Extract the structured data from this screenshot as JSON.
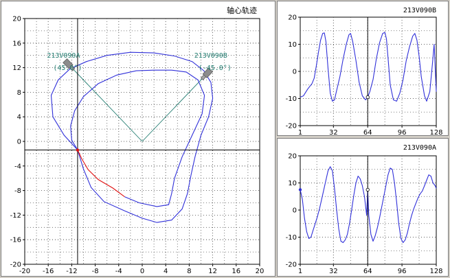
{
  "chart_data": [
    {
      "type": "line",
      "title": "轴心轨迹",
      "xlim": [
        -20,
        20
      ],
      "ylim": [
        -20,
        20
      ],
      "xticks": [
        -20,
        -16,
        -12,
        -8,
        -4,
        0,
        4,
        8,
        12,
        16,
        20
      ],
      "yticks": [
        -20,
        -16,
        -12,
        -8,
        -4,
        0,
        4,
        8,
        12,
        16,
        20
      ],
      "grid": true,
      "colors": {
        "orbit": "#2f2fd9",
        "highlight": "#e01010",
        "probe": "#1f7a6e",
        "cursor": "#000000"
      },
      "cursor": {
        "x": -11,
        "y": -1.4
      },
      "probes": [
        {
          "name": "213V090A",
          "angle_label": "(45.0°)",
          "sensor_x": -12,
          "sensor_y": 12
        },
        {
          "name": "213V090B",
          "angle_label": "(-45.0°)",
          "sensor_x": 10.5,
          "sensor_y": 10.5
        }
      ],
      "outer_orbit": [
        [
          -11,
          -1.4
        ],
        [
          -13.3,
          1
        ],
        [
          -15.2,
          4
        ],
        [
          -15.5,
          7.5
        ],
        [
          -14.3,
          10
        ],
        [
          -12.3,
          11.8
        ],
        [
          -9.5,
          13
        ],
        [
          -6,
          14
        ],
        [
          -2,
          14.5
        ],
        [
          2,
          14.4
        ],
        [
          5.5,
          13.9
        ],
        [
          8.5,
          13
        ],
        [
          10.5,
          11.5
        ],
        [
          11.7,
          9.6
        ],
        [
          12,
          7
        ],
        [
          11.3,
          4
        ],
        [
          10,
          1
        ],
        [
          9,
          -2.5
        ],
        [
          8.3,
          -5.5
        ],
        [
          7.7,
          -8.5
        ],
        [
          6.8,
          -11
        ],
        [
          5,
          -12.8
        ],
        [
          2.5,
          -13.2
        ],
        [
          0,
          -12.5
        ],
        [
          -3,
          -11.3
        ],
        [
          -6.5,
          -9.8
        ],
        [
          -8.7,
          -7.5
        ],
        [
          -10,
          -4.5
        ],
        [
          -11,
          -1.4
        ]
      ],
      "inner_orbit": [
        [
          -11,
          -1.4
        ],
        [
          -12,
          0.2
        ],
        [
          -12.2,
          2.5
        ],
        [
          -11.5,
          5
        ],
        [
          -10,
          7.3
        ],
        [
          -7.5,
          9.4
        ],
        [
          -4.3,
          10.8
        ],
        [
          -1,
          11.5
        ],
        [
          2,
          11.6
        ],
        [
          5,
          11.6
        ],
        [
          7.5,
          11.3
        ],
        [
          9.5,
          10
        ],
        [
          10.6,
          7.5
        ],
        [
          10.2,
          4.5
        ],
        [
          8.5,
          1
        ],
        [
          6.8,
          -2.5
        ],
        [
          5.5,
          -6
        ],
        [
          5,
          -8.5
        ],
        [
          4.5,
          -10.3
        ],
        [
          2.5,
          -10.6
        ],
        [
          -0.5,
          -10
        ],
        [
          -3,
          -9
        ]
      ],
      "highlight_segment": [
        [
          -11,
          -1.4
        ],
        [
          -10.3,
          -2.8
        ],
        [
          -9.2,
          -4.6
        ],
        [
          -7.5,
          -6.2
        ],
        [
          -5,
          -7.6
        ],
        [
          -3,
          -9
        ]
      ]
    },
    {
      "type": "line",
      "title": "213V090B",
      "xlim": [
        1,
        128
      ],
      "ylim": [
        -20,
        20
      ],
      "xticks": [
        1,
        32,
        64,
        96,
        128
      ],
      "yticks": [
        -20,
        -10,
        0,
        10,
        20
      ],
      "grid": true,
      "colors": {
        "line": "#2f2fd9",
        "cursor": "#000000"
      },
      "cursor_x": 64,
      "x": [
        1,
        4,
        8,
        12,
        14,
        16,
        18,
        20,
        22,
        23.5,
        25,
        27,
        29,
        31,
        33,
        35,
        38,
        41,
        44,
        46.5,
        48,
        50,
        53,
        56,
        59,
        62,
        64,
        66,
        69,
        72,
        75,
        78,
        80,
        81.5,
        83,
        85,
        88,
        91,
        94,
        97,
        100,
        103,
        106,
        108,
        110,
        112,
        114,
        117,
        119,
        122,
        124.5,
        126,
        128
      ],
      "values": [
        -9.5,
        -9,
        -6.5,
        -4.5,
        -2.5,
        2,
        7,
        11.5,
        14,
        14.2,
        11,
        1,
        -8,
        -11,
        -10.5,
        -7,
        -2,
        4.5,
        10,
        13.5,
        14,
        11,
        4,
        -4,
        -9,
        -10.5,
        -9.5,
        -7.5,
        -3,
        4.5,
        10.5,
        14,
        14.4,
        12,
        5,
        -5,
        -10.5,
        -11,
        -8,
        -3,
        4,
        9,
        13,
        14,
        11.5,
        5.5,
        -2,
        -9,
        -11,
        -7.5,
        3,
        10,
        -7.5
      ]
    },
    {
      "type": "line",
      "title": "213V090A",
      "xlim": [
        1,
        128
      ],
      "ylim": [
        -20,
        20
      ],
      "xticks": [
        1,
        32,
        64,
        96,
        128
      ],
      "yticks": [
        -20,
        -10,
        0,
        10,
        20
      ],
      "grid": true,
      "colors": {
        "line": "#2f2fd9",
        "cursor": "#000000"
      },
      "cursor_x": 64,
      "x": [
        1,
        3,
        5,
        7,
        9,
        11,
        13,
        15,
        17,
        19,
        21,
        23,
        25,
        27,
        29,
        31,
        33,
        35,
        37,
        39,
        41,
        43,
        45,
        47,
        49,
        51,
        53,
        55,
        57,
        59,
        61,
        63,
        64,
        65,
        67,
        69,
        71,
        73,
        75,
        77,
        79,
        81,
        83,
        85,
        87,
        89,
        91,
        93,
        95,
        97,
        99,
        101,
        103,
        105,
        107,
        109,
        111,
        113,
        115,
        117,
        119,
        121,
        123,
        125,
        127,
        128
      ],
      "values": [
        7.5,
        4,
        -3,
        -8,
        -10.5,
        -10,
        -7.5,
        -5,
        -2.5,
        0.5,
        4,
        7.5,
        11,
        14.5,
        16,
        14.5,
        8,
        0,
        -7,
        -11.5,
        -12,
        -11,
        -9,
        -5,
        0,
        5.5,
        10,
        12.5,
        11.5,
        9,
        5,
        -2,
        7.5,
        -2,
        -9,
        -11.5,
        -9.5,
        -6.5,
        -3,
        1,
        5,
        9,
        13,
        15.5,
        15,
        10,
        3,
        -5,
        -10.5,
        -12,
        -11,
        -8.5,
        -5,
        -2,
        0.5,
        2.5,
        4.5,
        6,
        7,
        9,
        11,
        13,
        12.5,
        10,
        9,
        8
      ]
    }
  ]
}
